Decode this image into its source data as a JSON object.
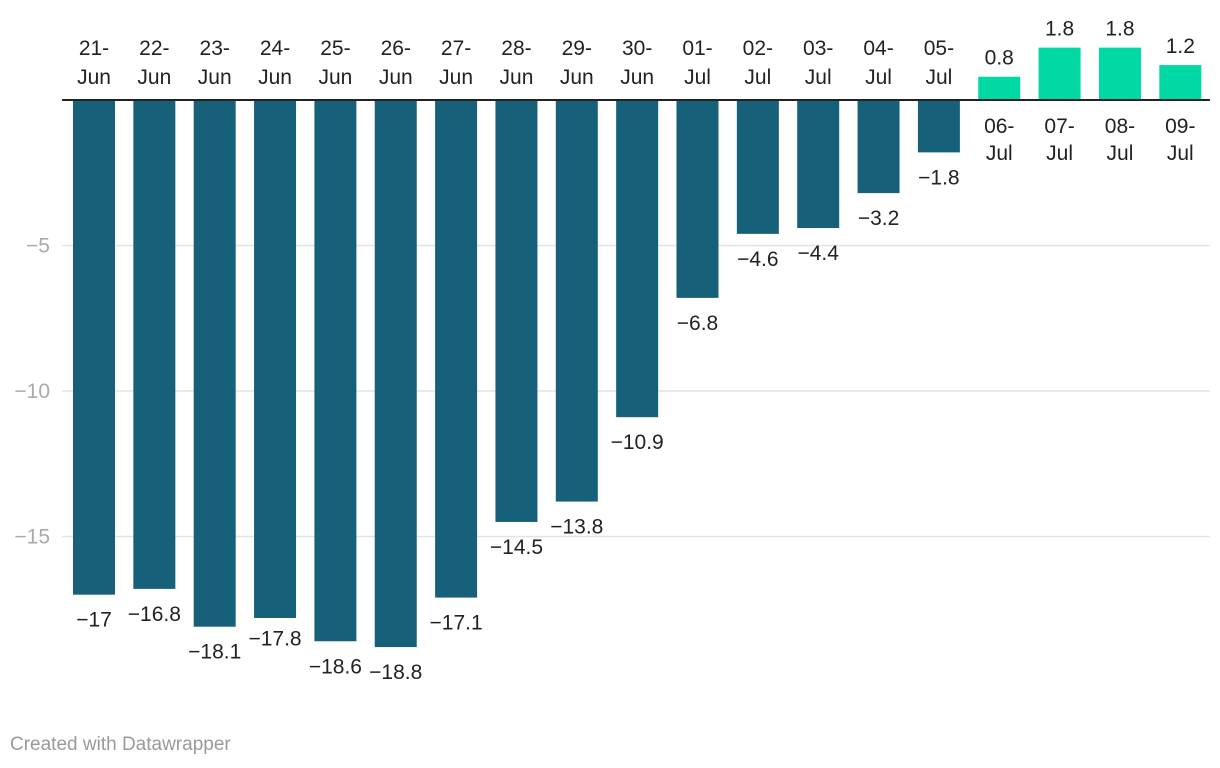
{
  "chart_data": {
    "type": "bar",
    "title": "",
    "xlabel": "",
    "ylabel": "",
    "ylim": [
      -20,
      2
    ],
    "yticks": [
      -15,
      -10,
      -5
    ],
    "ytick_labels": [
      "−15",
      "−10",
      "−5"
    ],
    "grid": true,
    "categories": [
      "21-Jun",
      "22-Jun",
      "23-Jun",
      "24-Jun",
      "25-Jun",
      "26-Jun",
      "27-Jun",
      "28-Jun",
      "29-Jun",
      "30-Jun",
      "01-Jul",
      "02-Jul",
      "03-Jul",
      "04-Jul",
      "05-Jul",
      "06-Jul",
      "07-Jul",
      "08-Jul",
      "09-Jul"
    ],
    "category_lines": [
      [
        "21-",
        "Jun"
      ],
      [
        "22-",
        "Jun"
      ],
      [
        "23-",
        "Jun"
      ],
      [
        "24-",
        "Jun"
      ],
      [
        "25-",
        "Jun"
      ],
      [
        "26-",
        "Jun"
      ],
      [
        "27-",
        "Jun"
      ],
      [
        "28-",
        "Jun"
      ],
      [
        "29-",
        "Jun"
      ],
      [
        "30-",
        "Jun"
      ],
      [
        "01-",
        "Jul"
      ],
      [
        "02-",
        "Jul"
      ],
      [
        "03-",
        "Jul"
      ],
      [
        "04-",
        "Jul"
      ],
      [
        "05-",
        "Jul"
      ],
      [
        "06-",
        "Jul"
      ],
      [
        "07-",
        "Jul"
      ],
      [
        "08-",
        "Jul"
      ],
      [
        "09-",
        "Jul"
      ]
    ],
    "values": [
      -17,
      -16.8,
      -18.1,
      -17.8,
      -18.6,
      -18.8,
      -17.1,
      -14.5,
      -13.8,
      -10.9,
      -6.8,
      -4.6,
      -4.4,
      -3.2,
      -1.8,
      0.8,
      1.8,
      1.8,
      1.2
    ],
    "value_labels": [
      "−17",
      "−16.8",
      "−18.1",
      "−17.8",
      "−18.6",
      "−18.8",
      "−17.1",
      "−14.5",
      "−13.8",
      "−10.9",
      "−6.8",
      "−4.6",
      "−4.4",
      "−3.2",
      "−1.8",
      "0.8",
      "1.8",
      "1.8",
      "1.2"
    ],
    "colors": {
      "negative": "#17607a",
      "positive": "#00d9a3",
      "grid": "#e3e3e3",
      "axis": "#222222",
      "tick_text": "#aaaaaa",
      "label_text": "#222222"
    }
  },
  "footer": {
    "credit": "Created with Datawrapper"
  }
}
